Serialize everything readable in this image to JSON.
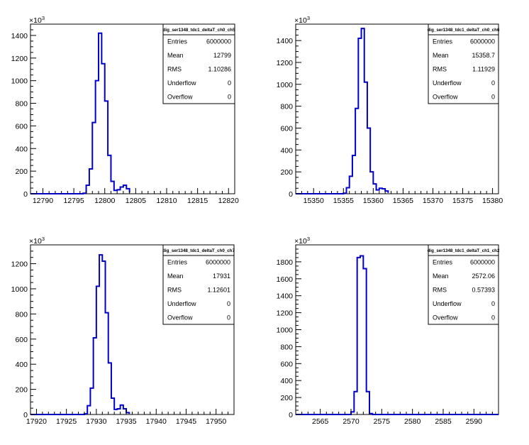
{
  "panels": [
    {
      "stats": {
        "title": "dig_ser1348_tdc1_deltaT_ch0_ch5",
        "rows": [
          {
            "label": "Entries",
            "value": "6000000"
          },
          {
            "label": "Mean",
            "value": "12799"
          },
          {
            "label": "RMS",
            "value": "1.10286"
          },
          {
            "label": "Underflow",
            "value": "0"
          },
          {
            "label": "Overflow",
            "value": "0"
          }
        ]
      },
      "y_exponent_label": "×10",
      "y_exponent_power": "3"
    },
    {
      "stats": {
        "title": "dig_ser1348_tdc1_deltaT_ch0_ch6",
        "rows": [
          {
            "label": "Entries",
            "value": "6000000"
          },
          {
            "label": "Mean",
            "value": "15358.7"
          },
          {
            "label": "RMS",
            "value": "1.11929"
          },
          {
            "label": "Underflow",
            "value": "0"
          },
          {
            "label": "Overflow",
            "value": "0"
          }
        ]
      },
      "y_exponent_label": "×10",
      "y_exponent_power": "3"
    },
    {
      "stats": {
        "title": "dig_ser1348_tdc1_deltaT_ch0_ch7",
        "rows": [
          {
            "label": "Entries",
            "value": "6000000"
          },
          {
            "label": "Mean",
            "value": "17931"
          },
          {
            "label": "RMS",
            "value": "1.12601"
          },
          {
            "label": "Underflow",
            "value": "0"
          },
          {
            "label": "Overflow",
            "value": "0"
          }
        ]
      },
      "y_exponent_label": "×10",
      "y_exponent_power": "3"
    },
    {
      "stats": {
        "title": "dig_ser1348_tdc1_deltaT_ch1_ch2",
        "rows": [
          {
            "label": "Entries",
            "value": "6000000"
          },
          {
            "label": "Mean",
            "value": "2572.06"
          },
          {
            "label": "RMS",
            "value": "0.57393"
          },
          {
            "label": "Underflow",
            "value": "0"
          },
          {
            "label": "Overflow",
            "value": "0"
          }
        ]
      },
      "y_exponent_label": "×10",
      "y_exponent_power": "3"
    }
  ],
  "colors": {
    "histogram_line": "#0000cc",
    "axis": "#000000",
    "background": "#ffffff"
  },
  "chart_data": [
    {
      "type": "bar",
      "style": "step-histogram",
      "title": "",
      "xlim": [
        12788,
        12821
      ],
      "ylim": [
        0,
        1500
      ],
      "y_scale_factor": 1000,
      "x_ticks": [
        12790,
        12795,
        12800,
        12805,
        12810,
        12815,
        12820
      ],
      "y_ticks": [
        0,
        200,
        400,
        600,
        800,
        1000,
        1200,
        1400
      ],
      "bin_edges": [
        12796.5,
        12797,
        12797.5,
        12798,
        12798.5,
        12799,
        12799.5,
        12800,
        12800.5,
        12801,
        12801.5,
        12802,
        12802.5,
        12803,
        12803.5,
        12804
      ],
      "values": [
        5,
        75,
        220,
        630,
        1000,
        1420,
        1150,
        820,
        340,
        110,
        30,
        35,
        60,
        75,
        45,
        10
      ],
      "grid": false,
      "legend": "top-right"
    },
    {
      "type": "bar",
      "style": "step-histogram",
      "title": "",
      "xlim": [
        15347,
        15381
      ],
      "ylim": [
        0,
        1550
      ],
      "y_scale_factor": 1000,
      "x_ticks": [
        15350,
        15355,
        15360,
        15365,
        15370,
        15375,
        15380
      ],
      "y_ticks": [
        0,
        200,
        400,
        600,
        800,
        1000,
        1200,
        1400
      ],
      "bin_edges": [
        15355,
        15355.5,
        15356,
        15356.5,
        15357,
        15357.5,
        15358,
        15358.5,
        15359,
        15359.5,
        15360,
        15360.5,
        15361,
        15361.5,
        15362,
        15362.5
      ],
      "values": [
        5,
        55,
        160,
        350,
        780,
        1420,
        1510,
        1020,
        600,
        200,
        90,
        35,
        50,
        45,
        25,
        8
      ],
      "grid": false,
      "legend": "top-right"
    },
    {
      "type": "bar",
      "style": "step-histogram",
      "title": "",
      "xlim": [
        17919,
        17953
      ],
      "ylim": [
        0,
        1350
      ],
      "y_scale_factor": 1000,
      "x_ticks": [
        17920,
        17925,
        17930,
        17935,
        17940,
        17945,
        17950
      ],
      "y_ticks": [
        0,
        200,
        400,
        600,
        800,
        1000,
        1200
      ],
      "bin_edges": [
        17928,
        17928.5,
        17929,
        17929.5,
        17930,
        17930.5,
        17931,
        17931.5,
        17932,
        17932.5,
        17933,
        17933.5,
        17934,
        17934.5,
        17935,
        17935.5
      ],
      "values": [
        5,
        70,
        210,
        610,
        1020,
        1270,
        1220,
        810,
        410,
        130,
        40,
        45,
        75,
        45,
        15,
        5
      ],
      "grid": false,
      "legend": "top-right"
    },
    {
      "type": "bar",
      "style": "step-histogram",
      "title": "",
      "xlim": [
        2561,
        2594
      ],
      "ylim": [
        0,
        2000
      ],
      "y_scale_factor": 1000,
      "x_ticks": [
        2565,
        2570,
        2575,
        2580,
        2585,
        2590
      ],
      "y_ticks": [
        0,
        200,
        400,
        600,
        800,
        1000,
        1200,
        1400,
        1600,
        1800
      ],
      "bin_edges": [
        2570,
        2570.5,
        2571,
        2571.5,
        2572,
        2572.5,
        2573,
        2573.5
      ],
      "values": [
        30,
        270,
        1850,
        1870,
        1720,
        270,
        10
      ],
      "grid": false,
      "legend": "top-right"
    }
  ]
}
